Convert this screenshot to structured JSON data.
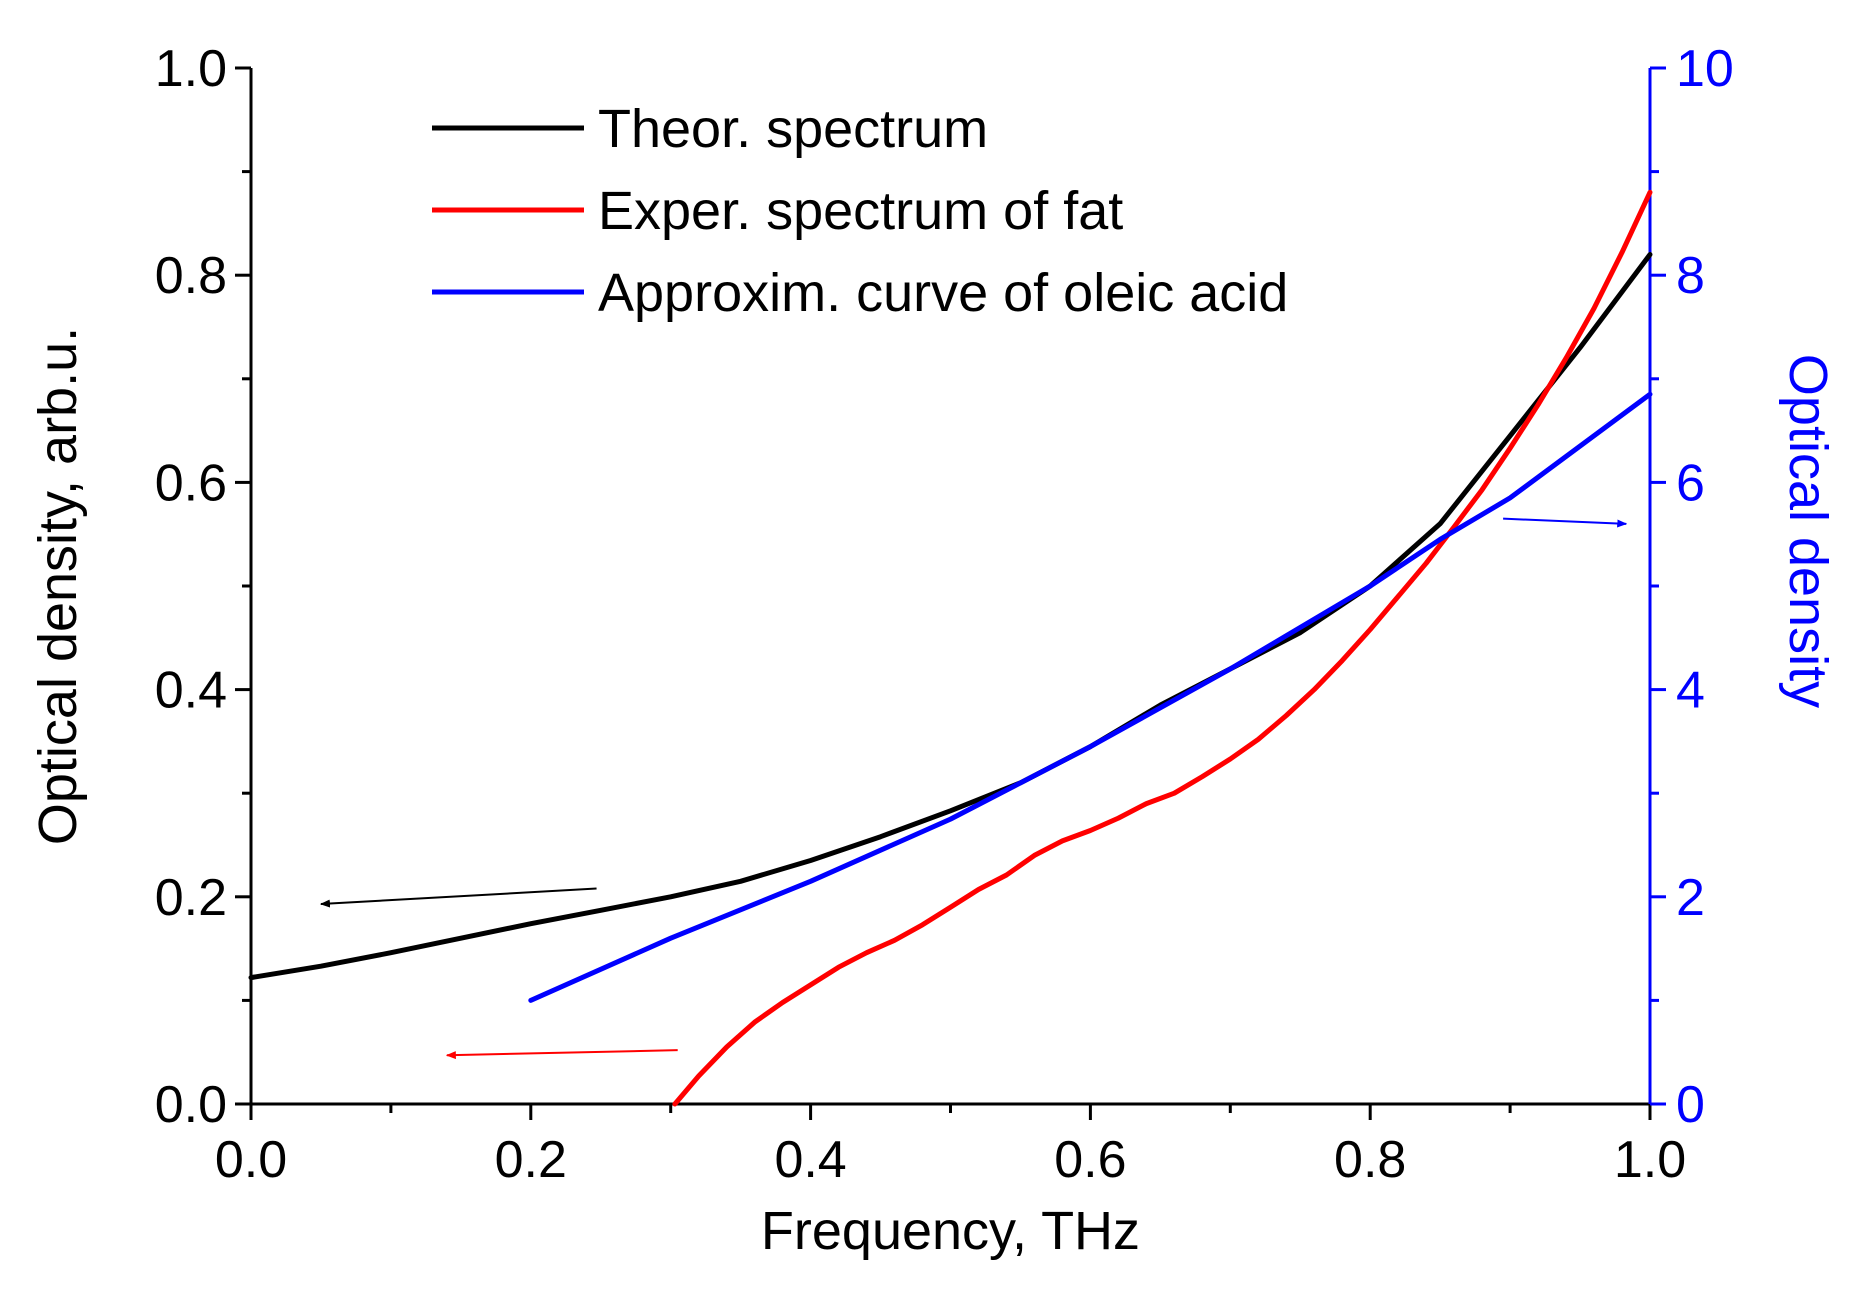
{
  "chart_data": {
    "type": "line",
    "xlabel": "Frequency, THz",
    "ylabel_left": "Optical density, arb.u.",
    "ylabel_right": "Optical density",
    "xlim": [
      0.0,
      1.0
    ],
    "ylim_left": [
      0.0,
      1.0
    ],
    "ylim_right": [
      0,
      10
    ],
    "x_ticks": [
      "0.0",
      "0.2",
      "0.4",
      "0.6",
      "0.8",
      "1.0"
    ],
    "y_left_ticks": [
      "0.0",
      "0.2",
      "0.4",
      "0.6",
      "0.8",
      "1.0"
    ],
    "y_right_ticks": [
      "0",
      "2",
      "4",
      "6",
      "8",
      "10"
    ],
    "grid": false,
    "legend_position": "top-center",
    "series": [
      {
        "name": "Theor. spectrum",
        "color": "#000000",
        "axis": "left",
        "x": [
          0.0,
          0.05,
          0.1,
          0.15,
          0.2,
          0.25,
          0.3,
          0.35,
          0.4,
          0.45,
          0.5,
          0.55,
          0.6,
          0.65,
          0.7,
          0.75,
          0.8,
          0.85,
          0.9,
          0.95,
          1.0
        ],
        "y": [
          0.122,
          0.133,
          0.146,
          0.16,
          0.174,
          0.187,
          0.2,
          0.215,
          0.235,
          0.258,
          0.283,
          0.31,
          0.345,
          0.385,
          0.42,
          0.455,
          0.5,
          0.56,
          0.645,
          0.73,
          0.82
        ]
      },
      {
        "name": "Exper. spectrum of fat",
        "color": "#ff0000",
        "axis": "left",
        "x": [
          0.303,
          0.32,
          0.34,
          0.36,
          0.38,
          0.4,
          0.42,
          0.44,
          0.46,
          0.48,
          0.5,
          0.52,
          0.54,
          0.56,
          0.58,
          0.6,
          0.62,
          0.64,
          0.66,
          0.68,
          0.7,
          0.72,
          0.74,
          0.76,
          0.78,
          0.8,
          0.82,
          0.84,
          0.86,
          0.88,
          0.9,
          0.92,
          0.94,
          0.96,
          0.98,
          1.0
        ],
        "y": [
          0.0,
          0.027,
          0.055,
          0.079,
          0.098,
          0.115,
          0.132,
          0.146,
          0.158,
          0.173,
          0.19,
          0.207,
          0.221,
          0.24,
          0.254,
          0.264,
          0.276,
          0.29,
          0.3,
          0.316,
          0.333,
          0.352,
          0.375,
          0.4,
          0.428,
          0.458,
          0.49,
          0.522,
          0.557,
          0.593,
          0.633,
          0.675,
          0.72,
          0.768,
          0.822,
          0.88
        ]
      },
      {
        "name": "Approxim. curve of oleic acid",
        "color": "#0000ff",
        "axis": "right",
        "x": [
          0.2,
          0.3,
          0.4,
          0.5,
          0.6,
          0.7,
          0.8,
          0.85,
          0.9,
          1.0
        ],
        "y": [
          1.0,
          1.6,
          2.15,
          2.75,
          3.45,
          4.2,
          5.0,
          5.45,
          5.85,
          6.85
        ]
      }
    ],
    "annotations": [
      {
        "name": "black-arrow",
        "color": "#000000",
        "direction": "left",
        "from": [
          0.247,
          0.208
        ],
        "to": [
          0.05,
          0.193
        ]
      },
      {
        "name": "red-arrow",
        "color": "#ff0000",
        "direction": "left",
        "from": [
          0.305,
          0.052
        ],
        "to": [
          0.14,
          0.047
        ]
      },
      {
        "name": "blue-arrow",
        "color": "#0000ff",
        "direction": "right",
        "from": [
          0.895,
          0.565
        ],
        "to": [
          0.983,
          0.56
        ]
      }
    ]
  }
}
